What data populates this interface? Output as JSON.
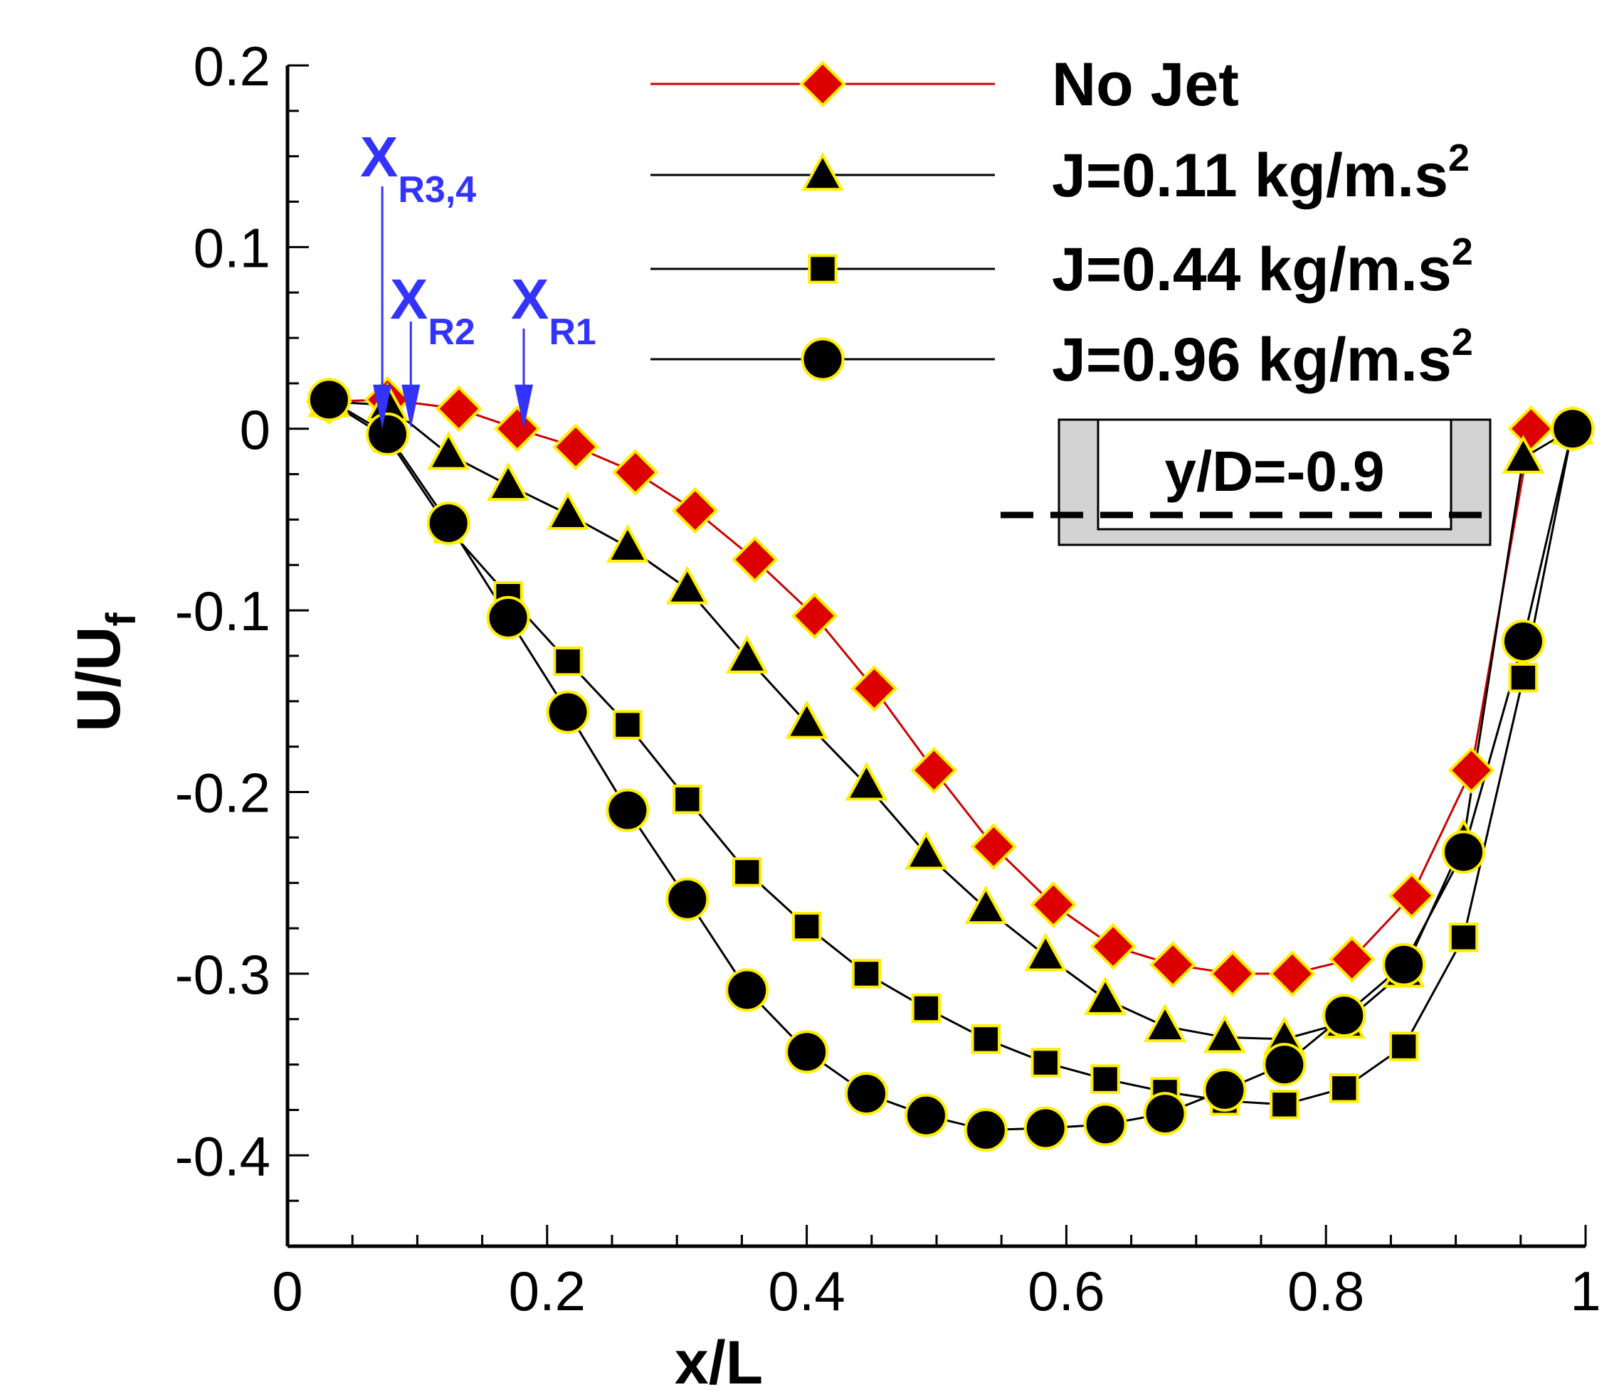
{
  "chart_data": {
    "type": "line",
    "xlabel": "x/L",
    "ylabel_main": "U/U",
    "ylabel_sub": "f",
    "xlim": [
      0,
      1
    ],
    "ylim": [
      -0.45,
      0.2
    ],
    "x_ticks": [
      0,
      0.2,
      0.4,
      0.6,
      0.8,
      1
    ],
    "x_tick_labels": [
      "0",
      "0.2",
      "0.4",
      "0.6",
      "0.8",
      "1"
    ],
    "y_ticks": [
      0.2,
      0.1,
      0,
      -0.1,
      -0.2,
      -0.3,
      -0.4
    ],
    "y_tick_labels": [
      "0.2",
      "0.1",
      "0",
      "-0.1",
      "-0.2",
      "-0.3",
      "-0.4"
    ],
    "legend_position": "top-right",
    "series": [
      {
        "name": "No Jet",
        "label_main": "No Jet",
        "label_sup": "",
        "marker": "diamond",
        "line_color": "#cc0000",
        "marker_fill": "#dd0000",
        "marker_edge": "#ffee00",
        "x": [
          0.032,
          0.077,
          0.132,
          0.177,
          0.222,
          0.268,
          0.314,
          0.36,
          0.406,
          0.452,
          0.498,
          0.544,
          0.59,
          0.636,
          0.682,
          0.728,
          0.774,
          0.82,
          0.866,
          0.912,
          0.958,
          0.99
        ],
        "y": [
          0.015,
          0.016,
          0.011,
          0.0,
          -0.01,
          -0.024,
          -0.045,
          -0.072,
          -0.103,
          -0.143,
          -0.188,
          -0.23,
          -0.262,
          -0.285,
          -0.295,
          -0.3,
          -0.3,
          -0.292,
          -0.257,
          -0.188,
          0.0,
          0.0
        ]
      },
      {
        "name": "J=0.11 kg/m.s^2",
        "label_main": "J=0.11 kg/m.s",
        "label_sup": "2",
        "marker": "triangle",
        "line_color": "#000000",
        "marker_fill": "#000000",
        "marker_edge": "#ffee00",
        "x": [
          0.032,
          0.077,
          0.124,
          0.17,
          0.216,
          0.262,
          0.308,
          0.354,
          0.4,
          0.446,
          0.492,
          0.538,
          0.584,
          0.63,
          0.676,
          0.722,
          0.768,
          0.814,
          0.86,
          0.906,
          0.952,
          0.99
        ],
        "y": [
          0.015,
          0.013,
          -0.014,
          -0.031,
          -0.047,
          -0.065,
          -0.088,
          -0.126,
          -0.162,
          -0.196,
          -0.234,
          -0.264,
          -0.29,
          -0.314,
          -0.329,
          -0.335,
          -0.336,
          -0.327,
          -0.299,
          -0.227,
          -0.016,
          0.0
        ]
      },
      {
        "name": "J=0.44 kg/m.s^2",
        "label_main": "J=0.44 kg/m.s",
        "label_sup": "2",
        "marker": "square",
        "line_color": "#000000",
        "marker_fill": "#000000",
        "marker_edge": "#ffee00",
        "x": [
          0.032,
          0.077,
          0.124,
          0.17,
          0.216,
          0.262,
          0.308,
          0.354,
          0.4,
          0.446,
          0.492,
          0.538,
          0.584,
          0.63,
          0.676,
          0.722,
          0.768,
          0.814,
          0.86,
          0.906,
          0.952,
          0.99
        ],
        "y": [
          0.015,
          -0.005,
          -0.055,
          -0.092,
          -0.128,
          -0.163,
          -0.204,
          -0.244,
          -0.274,
          -0.3,
          -0.319,
          -0.336,
          -0.349,
          -0.358,
          -0.365,
          -0.37,
          -0.372,
          -0.363,
          -0.34,
          -0.28,
          -0.137,
          0.0
        ]
      },
      {
        "name": "J=0.96 kg/m.s^2",
        "label_main": "J=0.96 kg/m.s",
        "label_sup": "2",
        "marker": "circle",
        "line_color": "#000000",
        "marker_fill": "#000000",
        "marker_edge": "#ffee00",
        "x": [
          0.032,
          0.077,
          0.124,
          0.17,
          0.216,
          0.262,
          0.308,
          0.354,
          0.4,
          0.446,
          0.492,
          0.538,
          0.584,
          0.63,
          0.676,
          0.722,
          0.768,
          0.814,
          0.86,
          0.906,
          0.952,
          0.99
        ],
        "y": [
          0.016,
          -0.003,
          -0.052,
          -0.104,
          -0.156,
          -0.21,
          -0.259,
          -0.309,
          -0.343,
          -0.366,
          -0.378,
          -0.386,
          -0.385,
          -0.383,
          -0.377,
          -0.364,
          -0.35,
          -0.323,
          -0.295,
          -0.233,
          -0.117,
          0.0
        ]
      }
    ],
    "annotations": [
      {
        "name": "xr34",
        "main": "X",
        "sub": "R3,4",
        "x": 0.073,
        "arrow_tip_y": 0.0
      },
      {
        "name": "xr2",
        "main": "X",
        "sub": "R2",
        "x": 0.095,
        "arrow_tip_y": 0.0
      },
      {
        "name": "xr1",
        "main": "X",
        "sub": "R1",
        "x": 0.182,
        "arrow_tip_y": 0.0
      }
    ],
    "inset_label": "y/D=-0.9"
  }
}
